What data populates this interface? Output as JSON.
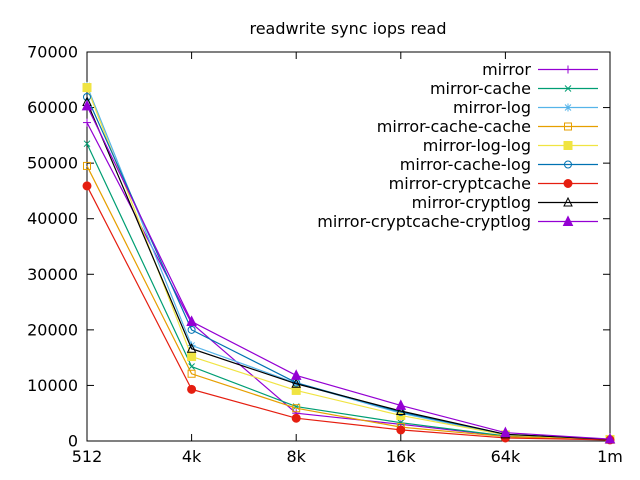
{
  "chart_data": {
    "type": "line",
    "title": "readwrite sync iops read",
    "xlabel": "",
    "ylabel": "",
    "categories": [
      "512",
      "4k",
      "8k",
      "16k",
      "64k",
      "1m"
    ],
    "y_ticks": [
      0,
      10000,
      20000,
      30000,
      40000,
      50000,
      60000,
      70000
    ],
    "ylim": [
      0,
      70000
    ],
    "grid": false,
    "border_box": true,
    "legend_position": "top-right-inside",
    "series": [
      {
        "name": "mirror",
        "color": "#9400d3",
        "marker": "plus",
        "values": [
          57300,
          21200,
          5000,
          3000,
          900,
          250
        ]
      },
      {
        "name": "mirror-cache",
        "color": "#009e73",
        "marker": "cross",
        "values": [
          53500,
          13400,
          6200,
          3300,
          900,
          250
        ]
      },
      {
        "name": "mirror-log",
        "color": "#56b4e9",
        "marker": "asterisk",
        "values": [
          63900,
          17200,
          10400,
          5000,
          1100,
          280
        ]
      },
      {
        "name": "mirror-cache-cache",
        "color": "#e69f00",
        "marker": "square-open",
        "values": [
          49500,
          12100,
          5900,
          2500,
          800,
          230
        ]
      },
      {
        "name": "mirror-log-log",
        "color": "#f0e442",
        "marker": "square-filled",
        "values": [
          63600,
          15200,
          9100,
          4600,
          1100,
          280
        ]
      },
      {
        "name": "mirror-cache-log",
        "color": "#0072b2",
        "marker": "circle-open",
        "values": [
          61900,
          20000,
          10500,
          5200,
          1200,
          300
        ]
      },
      {
        "name": "mirror-cryptcache",
        "color": "#e51e10",
        "marker": "circle-filled",
        "values": [
          45900,
          9300,
          4100,
          2000,
          550,
          200
        ]
      },
      {
        "name": "mirror-cryptlog",
        "color": "#000000",
        "marker": "triangle-open",
        "values": [
          61000,
          16600,
          10300,
          5400,
          1200,
          300
        ]
      },
      {
        "name": "mirror-cryptcache-cryptlog",
        "color": "#9400d3",
        "marker": "triangle-filled",
        "values": [
          60300,
          21500,
          11800,
          6400,
          1500,
          350
        ]
      }
    ],
    "colors": {
      "background": "#ffffff",
      "axis": "#000000",
      "text": "#000000"
    }
  }
}
